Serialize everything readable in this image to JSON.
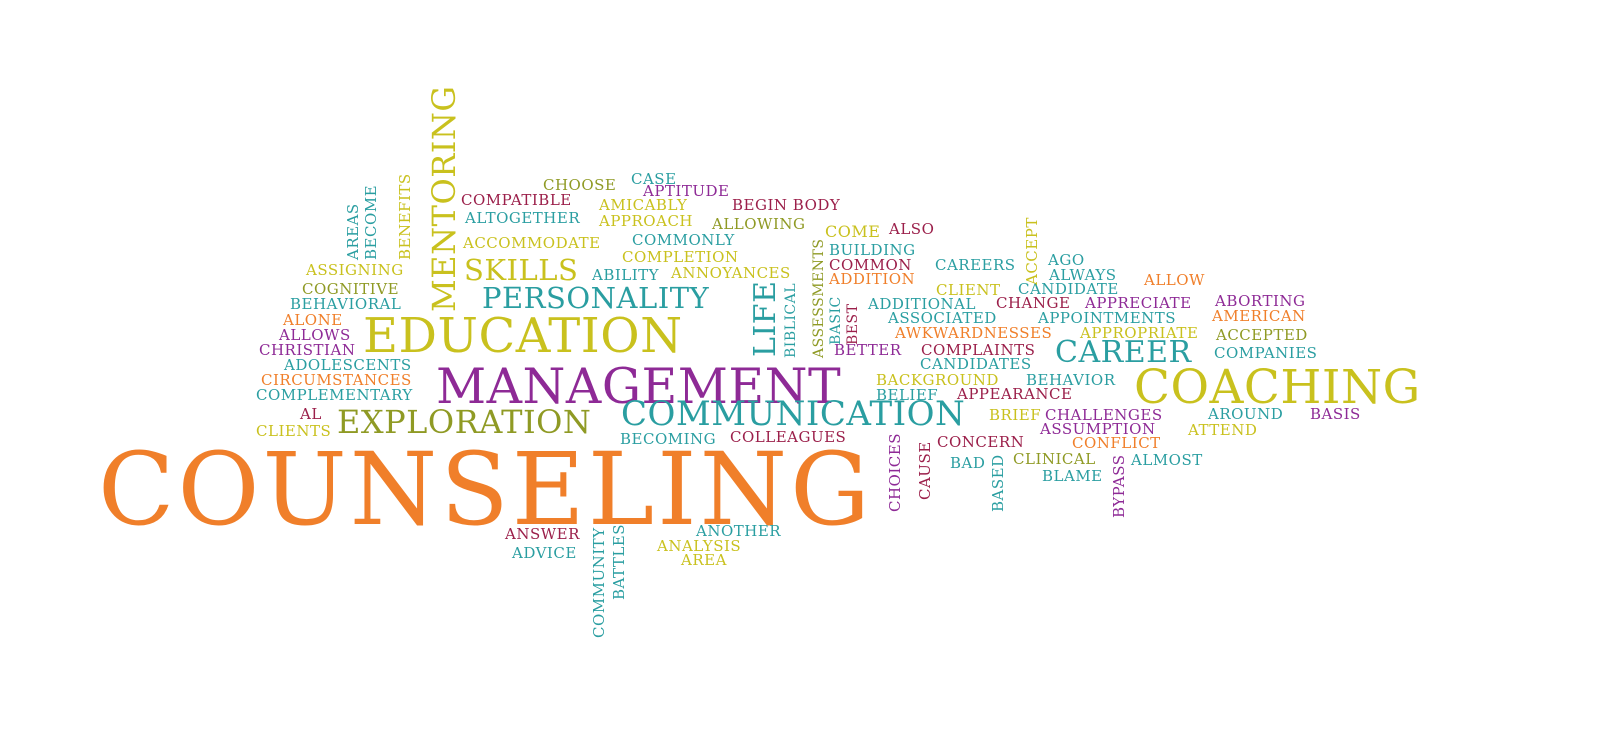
{
  "colors": {
    "orange": "#f07f2a",
    "yellow": "#c9c11e",
    "teal": "#2a9ea1",
    "purple": "#8e2a96",
    "maroon": "#9b1f4a",
    "olive": "#8f9a24"
  },
  "words": {
    "counseling": "COUNSELING",
    "management": "MANAGEMENT",
    "education": "EDUCATION",
    "coaching": "COACHING",
    "communication": "COMMUNICATION",
    "exploration": "EXPLORATION",
    "personality": "PERSONALITY",
    "career": "CAREER",
    "mentoring": "MENTORING",
    "skills": "SKILLS",
    "life": "LIFE",
    "choose": "CHOOSE",
    "case": "CASE",
    "aptitude": "APTITUDE",
    "compatible": "COMPATIBLE",
    "amicably": "AMICABLY",
    "begin_body": "BEGIN BODY",
    "altogether": "ALTOGETHER",
    "approach": "APPROACH",
    "allowing": "ALLOWING",
    "accommodate": "ACCOMMODATE",
    "commonly": "COMMONLY",
    "come": "COME",
    "also": "ALSO",
    "completion": "COMPLETION",
    "building": "BUILDING",
    "common": "COMMON",
    "careers": "CAREERS",
    "ago": "AGO",
    "ability": "ABILITY",
    "annoyances": "ANNOYANCES",
    "addition": "ADDITION",
    "always": "ALWAYS",
    "allow": "ALLOW",
    "client": "CLIENT",
    "candidate": "CANDIDATE",
    "additional": "ADDITIONAL",
    "change": "CHANGE",
    "appreciate": "APPRECIATE",
    "aborting": "ABORTING",
    "associated": "ASSOCIATED",
    "appointments": "APPOINTMENTS",
    "american": "AMERICAN",
    "awkwardnesses": "AWKWARDNESSES",
    "appropriate": "APPROPRIATE",
    "accepted": "ACCEPTED",
    "better": "BETTER",
    "complaints": "COMPLAINTS",
    "companies": "COMPANIES",
    "candidates": "CANDIDATES",
    "background": "BACKGROUND",
    "behavior": "BEHAVIOR",
    "belief": "BELIEF",
    "appearance": "APPEARANCE",
    "brief": "BRIEF",
    "challenges": "CHALLENGES",
    "around": "AROUND",
    "basis": "BASIS",
    "assumption": "ASSUMPTION",
    "attend": "ATTEND",
    "conflict": "CONFLICT",
    "concern": "CONCERN",
    "becoming": "BECOMING",
    "colleagues": "COLLEAGUES",
    "bad": "BAD",
    "clinical": "CLINICAL",
    "almost": "ALMOST",
    "blame": "BLAME",
    "assigning": "ASSIGNING",
    "cognitive": "COGNITIVE",
    "behavioral": "BEHAVIORAL",
    "alone": "ALONE",
    "allows": "ALLOWS",
    "christian": "CHRISTIAN",
    "adolescents": "ADOLESCENTS",
    "circumstances": "CIRCUMSTANCES",
    "complementary": "COMPLEMENTARY",
    "al": "AL",
    "clients": "CLIENTS",
    "answer": "ANSWER",
    "another": "ANOTHER",
    "advice": "ADVICE",
    "analysis": "ANALYSIS",
    "area": "AREA",
    "areas": "AREAS",
    "become": "BECOME",
    "benefits": "BENEFITS",
    "biblical": "BIBLICAL",
    "assessments": "ASSESSMENTS",
    "basic": "BASIC",
    "best": "BEST",
    "accept": "ACCEPT",
    "choices": "CHOICES",
    "cause": "CAUSE",
    "based": "BASED",
    "bypass": "BYPASS",
    "community": "COMMUNITY",
    "battles": "BATTLES"
  }
}
